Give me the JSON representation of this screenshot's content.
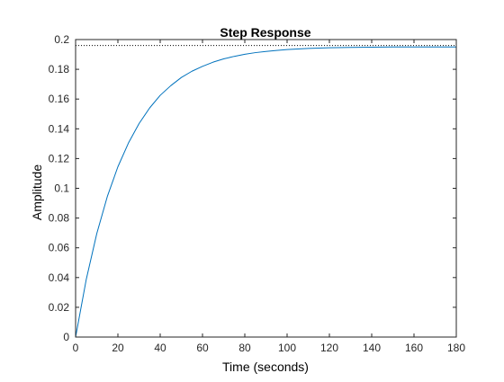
{
  "chart_data": {
    "type": "line",
    "title": "Step Response",
    "xlabel": "Time (seconds)",
    "ylabel": "Amplitude",
    "xlim": [
      0,
      180
    ],
    "ylim": [
      0,
      0.2
    ],
    "x_ticks": [
      0,
      20,
      40,
      60,
      80,
      100,
      120,
      140,
      160,
      180
    ],
    "x_tick_labels": [
      "0",
      "20",
      "40",
      "60",
      "80",
      "100",
      "120",
      "140",
      "160",
      "180"
    ],
    "y_ticks": [
      0,
      0.02,
      0.04,
      0.06,
      0.08,
      0.1,
      0.12,
      0.14,
      0.16,
      0.18,
      0.2
    ],
    "y_tick_labels": [
      "0",
      "0.02",
      "0.04",
      "0.06",
      "0.08",
      "0.1",
      "0.12",
      "0.14",
      "0.16",
      "0.18",
      "0.2"
    ],
    "grid": false,
    "series": [
      {
        "color": "#0072bd",
        "x": [
          0,
          5,
          10,
          15,
          20,
          25,
          30,
          35,
          40,
          45,
          50,
          55,
          60,
          65,
          70,
          75,
          80,
          85,
          90,
          95,
          100,
          110,
          120,
          130,
          140,
          150,
          160,
          170,
          180
        ],
        "y": [
          0,
          0.0385,
          0.0695,
          0.0945,
          0.1145,
          0.1305,
          0.1435,
          0.154,
          0.1625,
          0.169,
          0.1745,
          0.1787,
          0.182,
          0.1848,
          0.187,
          0.1887,
          0.1901,
          0.1912,
          0.192,
          0.1927,
          0.1933,
          0.194,
          0.1945,
          0.1947,
          0.1949,
          0.195,
          0.195,
          0.195,
          0.195
        ]
      }
    ],
    "reference_lines": [
      {
        "orientation": "horizontal",
        "y": 0.196,
        "style": "dotted",
        "color": "#000000",
        "x_range": [
          0,
          180
        ]
      }
    ]
  }
}
